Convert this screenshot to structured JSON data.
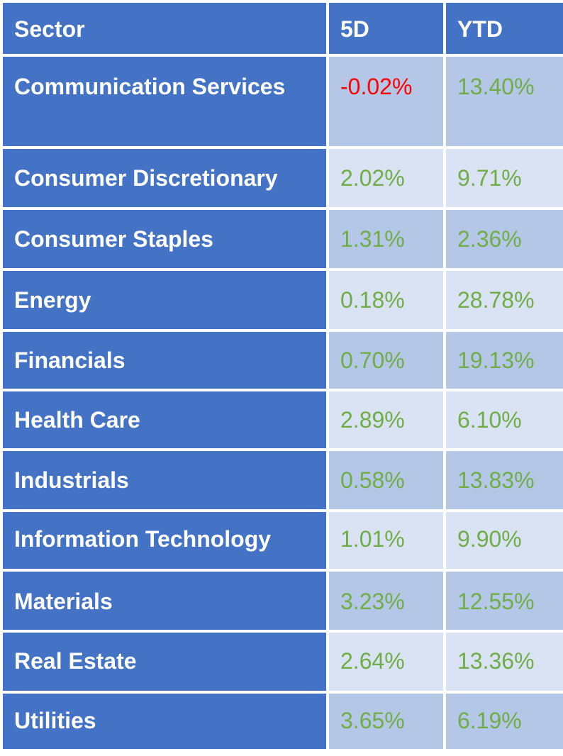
{
  "header": {
    "sector": "Sector",
    "five_day": "5D",
    "ytd": "YTD"
  },
  "colors": {
    "header_bg": "#4472c4",
    "band_dark": "#b4c7e7",
    "band_light": "#dae3f3",
    "positive": "#70ad47",
    "negative": "#ff0000"
  },
  "rows": [
    {
      "sector": "Communication Services",
      "five_day": "-0.02%",
      "ytd": "13.40%"
    },
    {
      "sector": "Consumer Discretionary",
      "five_day": "2.02%",
      "ytd": "9.71%"
    },
    {
      "sector": "Consumer Staples",
      "five_day": "1.31%",
      "ytd": "2.36%"
    },
    {
      "sector": "Energy",
      "five_day": "0.18%",
      "ytd": "28.78%"
    },
    {
      "sector": "Financials",
      "five_day": "0.70%",
      "ytd": "19.13%"
    },
    {
      "sector": "Health Care",
      "five_day": "2.89%",
      "ytd": "6.10%"
    },
    {
      "sector": "Industrials",
      "five_day": "0.58%",
      "ytd": "13.83%"
    },
    {
      "sector": "Information Technology",
      "five_day": "1.01%",
      "ytd": "9.90%"
    },
    {
      "sector": "Materials",
      "five_day": "3.23%",
      "ytd": "12.55%"
    },
    {
      "sector": "Real Estate",
      "five_day": "2.64%",
      "ytd": "13.36%"
    },
    {
      "sector": "Utilities",
      "five_day": "3.65%",
      "ytd": "6.19%"
    }
  ]
}
